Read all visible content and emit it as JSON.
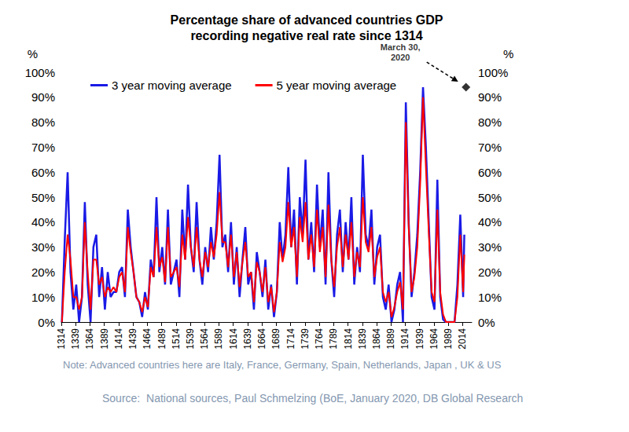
{
  "chart_data": {
    "type": "line",
    "title": "Percentage share of advanced countries GDP\nrecording negative real rate since 1314",
    "x": [
      1315,
      1320,
      1325,
      1330,
      1335,
      1340,
      1345,
      1350,
      1355,
      1360,
      1365,
      1370,
      1375,
      1380,
      1385,
      1390,
      1395,
      1400,
      1405,
      1410,
      1415,
      1420,
      1425,
      1430,
      1435,
      1440,
      1445,
      1450,
      1455,
      1460,
      1465,
      1470,
      1475,
      1480,
      1485,
      1490,
      1495,
      1500,
      1505,
      1510,
      1515,
      1520,
      1525,
      1530,
      1535,
      1540,
      1545,
      1550,
      1555,
      1560,
      1565,
      1570,
      1575,
      1580,
      1585,
      1590,
      1595,
      1600,
      1605,
      1610,
      1615,
      1620,
      1625,
      1630,
      1635,
      1640,
      1645,
      1650,
      1655,
      1660,
      1665,
      1670,
      1675,
      1680,
      1685,
      1690,
      1695,
      1700,
      1705,
      1710,
      1715,
      1720,
      1725,
      1730,
      1735,
      1740,
      1745,
      1750,
      1755,
      1760,
      1765,
      1770,
      1775,
      1780,
      1785,
      1790,
      1795,
      1800,
      1805,
      1810,
      1815,
      1820,
      1825,
      1830,
      1835,
      1840,
      1845,
      1850,
      1855,
      1860,
      1865,
      1870,
      1875,
      1880,
      1885,
      1890,
      1895,
      1900,
      1905,
      1910,
      1915,
      1920,
      1925,
      1930,
      1935,
      1940,
      1945,
      1950,
      1955,
      1960,
      1965,
      1970,
      1975,
      1980,
      1985,
      1990,
      1995,
      2000,
      2005,
      2010,
      2015,
      2017
    ],
    "series": [
      {
        "name": "3 year moving average",
        "color": "#1a1ae6",
        "values": [
          0,
          33,
          60,
          20,
          5,
          15,
          0,
          10,
          48,
          15,
          0,
          30,
          35,
          10,
          22,
          5,
          20,
          10,
          12,
          12,
          20,
          22,
          10,
          45,
          30,
          20,
          10,
          8,
          2,
          12,
          5,
          25,
          18,
          50,
          20,
          30,
          15,
          45,
          15,
          20,
          25,
          10,
          45,
          25,
          55,
          30,
          20,
          48,
          25,
          15,
          30,
          20,
          38,
          25,
          40,
          67,
          30,
          35,
          20,
          40,
          15,
          30,
          10,
          25,
          38,
          15,
          20,
          5,
          28,
          20,
          10,
          25,
          5,
          15,
          2,
          12,
          40,
          25,
          35,
          62,
          30,
          45,
          15,
          50,
          35,
          65,
          25,
          40,
          20,
          55,
          30,
          45,
          15,
          60,
          25,
          10,
          35,
          45,
          20,
          40,
          25,
          50,
          15,
          30,
          20,
          67,
          35,
          30,
          45,
          15,
          30,
          35,
          10,
          5,
          15,
          0,
          5,
          15,
          20,
          0,
          88,
          40,
          10,
          20,
          35,
          60,
          94,
          70,
          40,
          10,
          5,
          57,
          10,
          1,
          0,
          0,
          0,
          0,
          15,
          43,
          10,
          35
        ]
      },
      {
        "name": "5 year moving average",
        "color": "#ff0000",
        "values": [
          0,
          20,
          35,
          25,
          10,
          10,
          5,
          10,
          40,
          20,
          5,
          25,
          25,
          15,
          18,
          10,
          14,
          12,
          14,
          12,
          18,
          20,
          12,
          38,
          28,
          20,
          10,
          8,
          4,
          10,
          6,
          22,
          18,
          38,
          22,
          26,
          16,
          38,
          18,
          20,
          22,
          14,
          35,
          25,
          42,
          30,
          22,
          38,
          25,
          18,
          28,
          22,
          32,
          26,
          35,
          52,
          32,
          32,
          22,
          35,
          18,
          28,
          14,
          24,
          32,
          18,
          20,
          8,
          24,
          20,
          12,
          22,
          8,
          14,
          4,
          12,
          32,
          24,
          30,
          48,
          30,
          38,
          18,
          42,
          32,
          48,
          25,
          35,
          22,
          45,
          28,
          38,
          18,
          47,
          25,
          14,
          30,
          38,
          22,
          35,
          25,
          40,
          18,
          28,
          22,
          50,
          32,
          28,
          38,
          18,
          26,
          30,
          12,
          8,
          12,
          2,
          6,
          12,
          16,
          5,
          80,
          38,
          12,
          18,
          30,
          55,
          90,
          62,
          36,
          12,
          8,
          45,
          12,
          3,
          0,
          0,
          0,
          0,
          10,
          35,
          12,
          27
        ]
      }
    ],
    "xlim": [
      1314,
      2030
    ],
    "xticks": [
      1314,
      1339,
      1364,
      1389,
      1414,
      1439,
      1464,
      1489,
      1514,
      1539,
      1564,
      1589,
      1614,
      1639,
      1664,
      1689,
      1714,
      1739,
      1764,
      1789,
      1814,
      1839,
      1864,
      1889,
      1914,
      1939,
      1964,
      1989,
      2014
    ],
    "ylim": [
      0,
      100
    ],
    "yticks": [
      {
        "value": 0,
        "label": "0%"
      },
      {
        "value": 10,
        "label": "10%"
      },
      {
        "value": 20,
        "label": "20%"
      },
      {
        "value": 30,
        "label": "30%"
      },
      {
        "value": 40,
        "label": "40%"
      },
      {
        "value": 50,
        "label": "50%"
      },
      {
        "value": 60,
        "label": "60%"
      },
      {
        "value": 70,
        "label": "70%"
      },
      {
        "value": 80,
        "label": "80%"
      },
      {
        "value": 90,
        "label": "90%"
      },
      {
        "value": 100,
        "label": "100%"
      }
    ],
    "y2lim": [
      0,
      100
    ],
    "y2ticks": [
      {
        "value": 0,
        "label": "0%"
      },
      {
        "value": 10,
        "label": "10%"
      },
      {
        "value": 20,
        "label": "20%"
      },
      {
        "value": 30,
        "label": "30%"
      },
      {
        "value": 40,
        "label": "40%"
      },
      {
        "value": 50,
        "label": "50%"
      },
      {
        "value": 60,
        "label": "60%"
      },
      {
        "value": 70,
        "label": "70%"
      },
      {
        "value": 80,
        "label": "80%"
      },
      {
        "value": 90,
        "label": "90%"
      },
      {
        "value": 100,
        "label": "100%"
      }
    ],
    "ylabel": "%",
    "y2label": "%",
    "legend": "top",
    "grid": false,
    "annotations": [
      {
        "text": "March 30,\n2020",
        "x": 2020,
        "y": 94,
        "marker": "diamond",
        "color": "#000000"
      }
    ],
    "note": "Note: Advanced countries here are Italy, France, Germany, Spain, Netherlands, Japan , UK & US",
    "source": "Source:  National sources, Paul Schmelzing (BoE, January 2020, DB Global Research"
  }
}
